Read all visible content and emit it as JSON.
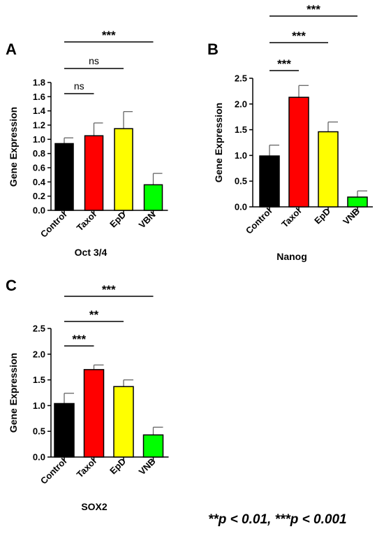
{
  "chart_data": [
    {
      "panel": "A",
      "type": "bar",
      "categories": [
        "Control",
        "Taxol",
        "EpD",
        "VBN"
      ],
      "values": [
        0.94,
        1.05,
        1.15,
        0.36
      ],
      "errors": [
        0.08,
        0.18,
        0.24,
        0.16
      ],
      "colors": [
        "#000000",
        "#ff0000",
        "#ffff00",
        "#00ff00"
      ],
      "ylabel": "Gene Expression",
      "xlabel": "Oct 3/4",
      "ylim": [
        0,
        1.8
      ],
      "yticks": [
        "0.0",
        "0.2",
        "0.4",
        "0.6",
        "0.8",
        "1.0",
        "1.2",
        "1.4",
        "1.6",
        "1.8"
      ],
      "comparisons": [
        {
          "from": "Control",
          "to": "Taxol",
          "label": "ns"
        },
        {
          "from": "Control",
          "to": "EpD",
          "label": "ns"
        },
        {
          "from": "Control",
          "to": "VBN",
          "label": "***"
        }
      ]
    },
    {
      "panel": "B",
      "type": "bar",
      "categories": [
        "Control",
        "Taxol",
        "EpD",
        "VNB"
      ],
      "values": [
        0.99,
        2.13,
        1.46,
        0.19
      ],
      "errors": [
        0.21,
        0.23,
        0.19,
        0.12
      ],
      "colors": [
        "#000000",
        "#ff0000",
        "#ffff00",
        "#00ff00"
      ],
      "ylabel": "Gene Expression",
      "xlabel": "Nanog",
      "ylim": [
        0,
        2.5
      ],
      "yticks": [
        "0.0",
        "0.5",
        "1.0",
        "1.5",
        "2.0",
        "2.5"
      ],
      "comparisons": [
        {
          "from": "Control",
          "to": "Taxol",
          "label": "***"
        },
        {
          "from": "Control",
          "to": "EpD",
          "label": "***"
        },
        {
          "from": "Control",
          "to": "VNB",
          "label": "***"
        }
      ]
    },
    {
      "panel": "C",
      "type": "bar",
      "categories": [
        "Control",
        "Taxol",
        "EpD",
        "VNB"
      ],
      "values": [
        1.04,
        1.7,
        1.37,
        0.43
      ],
      "errors": [
        0.2,
        0.09,
        0.13,
        0.15
      ],
      "colors": [
        "#000000",
        "#ff0000",
        "#ffff00",
        "#00ff00"
      ],
      "ylabel": "Gene Expression",
      "xlabel": "SOX2",
      "ylim": [
        0,
        2.5
      ],
      "yticks": [
        "0.0",
        "0.5",
        "1.0",
        "1.5",
        "2.0",
        "2.5"
      ],
      "comparisons": [
        {
          "from": "Control",
          "to": "Taxol",
          "label": "***"
        },
        {
          "from": "Control",
          "to": "EpD",
          "label": "**"
        },
        {
          "from": "Control",
          "to": "VNB",
          "label": "***"
        }
      ]
    }
  ],
  "footnote": "**p < 0.01,  ***p < 0.001"
}
